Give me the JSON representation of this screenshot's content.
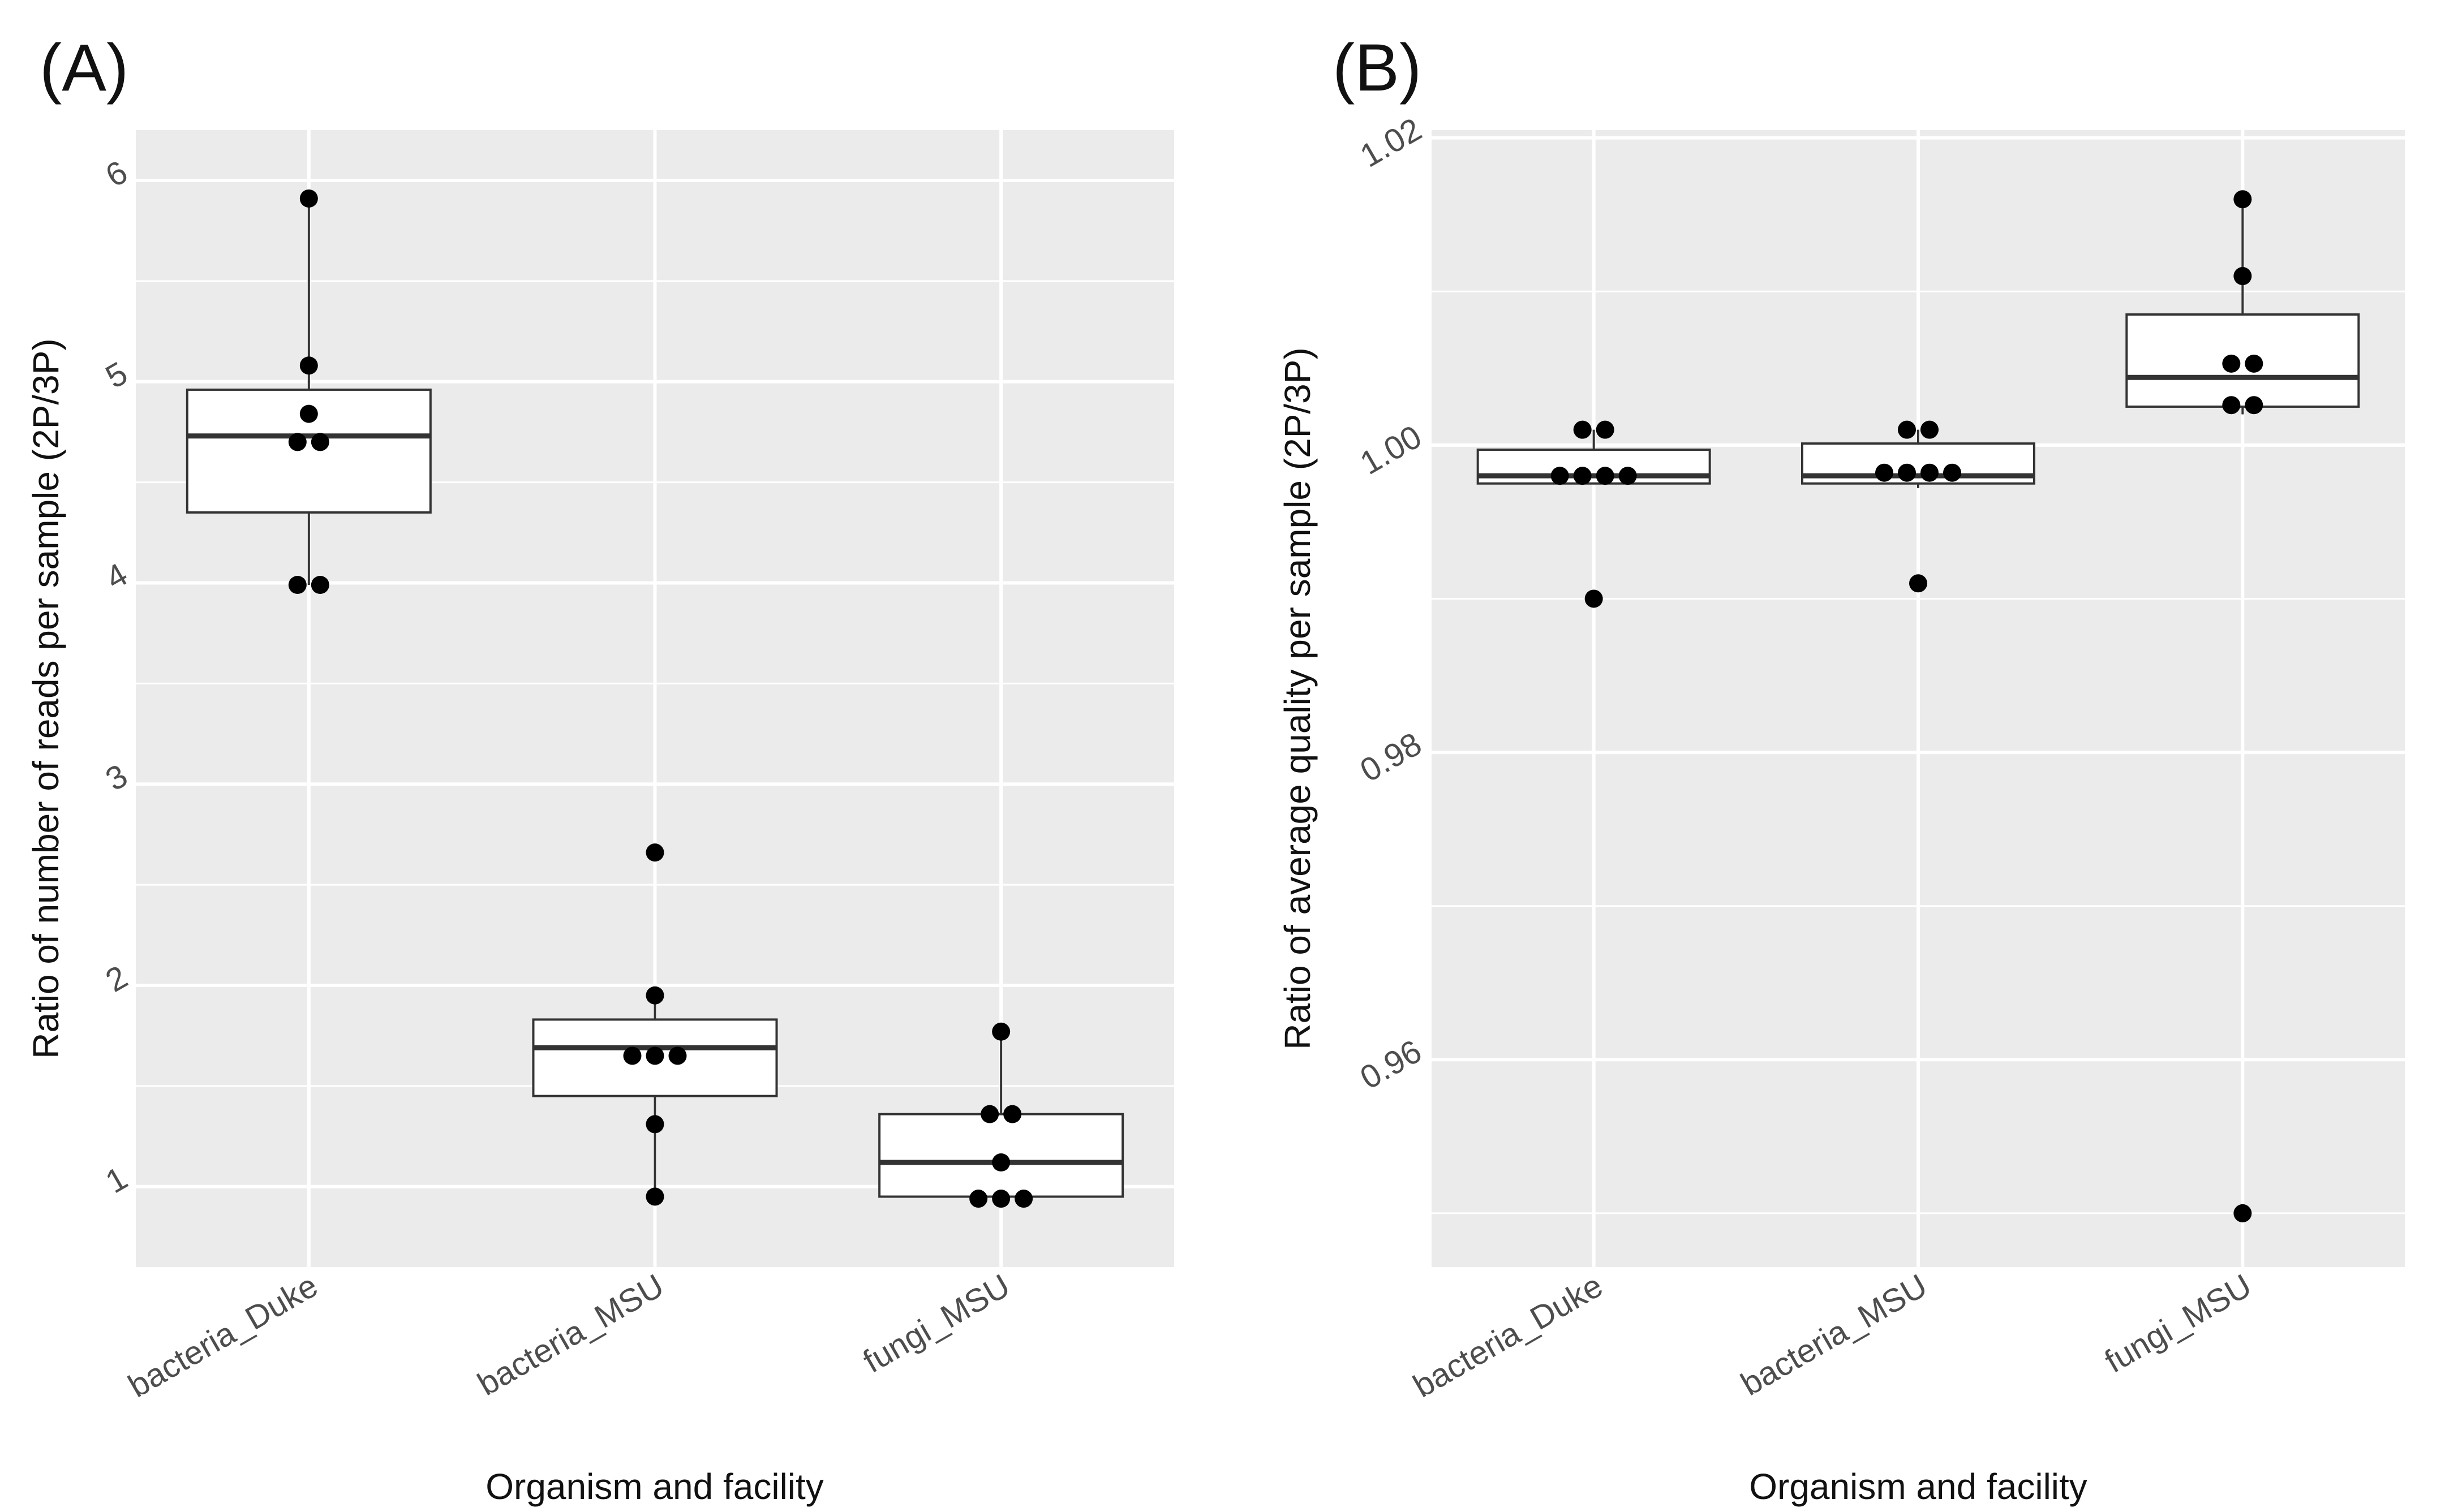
{
  "panels": [
    {
      "label": "(A)",
      "xlabel": "Organism and facility",
      "ylabel": "Ratio of number of reads per sample (2P/3P)"
    },
    {
      "label": "(B)",
      "xlabel": "Organism and facility",
      "ylabel": "Ratio of average quality per sample (2P/3P)"
    }
  ],
  "colors": {
    "panel_background": "#ebebeb",
    "grid": "#ffffff",
    "box_fill": "#ffffff",
    "box_stroke": "#333333",
    "median": "#333333",
    "point": "#000000",
    "tick_text": "#4d4d4d"
  },
  "chart_data": [
    {
      "type": "boxplot",
      "title": "(A)",
      "xlabel": "Organism and facility",
      "ylabel": "Ratio of number of reads per sample (2P/3P)",
      "categories": [
        "bacteria_Duke",
        "bacteria_MSU",
        "fungi_MSU"
      ],
      "ylim": [
        0.6,
        6.25
      ],
      "yticks": [
        1,
        2,
        3,
        4,
        5,
        6
      ],
      "ytick_labels": [
        "1",
        "2",
        "3",
        "4",
        "5",
        "6"
      ],
      "boxes": [
        {
          "category": "bacteria_Duke",
          "whisker_low": 3.99,
          "q1": 4.35,
          "median": 4.73,
          "q3": 4.96,
          "whisker_high": 5.91
        },
        {
          "category": "bacteria_MSU",
          "whisker_low": 0.95,
          "q1": 1.45,
          "median": 1.69,
          "q3": 1.83,
          "whisker_high": 1.95
        },
        {
          "category": "fungi_MSU",
          "whisker_low": 0.94,
          "q1": 0.95,
          "median": 1.12,
          "q3": 1.36,
          "whisker_high": 1.77
        }
      ],
      "points": [
        {
          "category": "bacteria_Duke",
          "values": [
            5.91,
            5.08,
            4.84,
            4.7,
            4.7,
            3.99,
            3.99
          ]
        },
        {
          "category": "bacteria_MSU",
          "values": [
            2.66,
            1.95,
            1.65,
            1.65,
            1.65,
            1.31,
            0.95
          ]
        },
        {
          "category": "fungi_MSU",
          "values": [
            1.77,
            1.36,
            1.36,
            1.12,
            0.94,
            0.94,
            0.94
          ]
        }
      ]
    },
    {
      "type": "boxplot",
      "title": "(B)",
      "xlabel": "Organism and facility",
      "ylabel": "Ratio of average quality per sample (2P/3P)",
      "categories": [
        "bacteria_Duke",
        "bacteria_MSU",
        "fungi_MSU"
      ],
      "ylim": [
        0.9465,
        1.0205
      ],
      "yticks": [
        0.96,
        0.98,
        1.0,
        1.02
      ],
      "ytick_labels": [
        "0.96",
        "0.98",
        "1.00",
        "1.02"
      ],
      "boxes": [
        {
          "category": "bacteria_Duke",
          "whisker_low": 0.9975,
          "q1": 0.9975,
          "median": 0.998,
          "q3": 0.9997,
          "whisker_high": 1.001
        },
        {
          "category": "bacteria_MSU",
          "whisker_low": 0.9972,
          "q1": 0.9975,
          "median": 0.998,
          "q3": 1.0001,
          "whisker_high": 1.001
        },
        {
          "category": "fungi_MSU",
          "whisker_low": 1.002,
          "q1": 1.0025,
          "median": 1.0044,
          "q3": 1.0085,
          "whisker_high": 1.016
        }
      ],
      "points": [
        {
          "category": "bacteria_Duke",
          "values": [
            1.001,
            1.001,
            0.998,
            0.998,
            0.998,
            0.998,
            0.99
          ]
        },
        {
          "category": "bacteria_MSU",
          "values": [
            1.001,
            1.001,
            0.9982,
            0.9982,
            0.9982,
            0.9982,
            0.991
          ]
        },
        {
          "category": "fungi_MSU",
          "values": [
            1.016,
            1.011,
            1.0053,
            1.0053,
            1.0026,
            1.0026,
            0.95
          ]
        }
      ]
    }
  ]
}
